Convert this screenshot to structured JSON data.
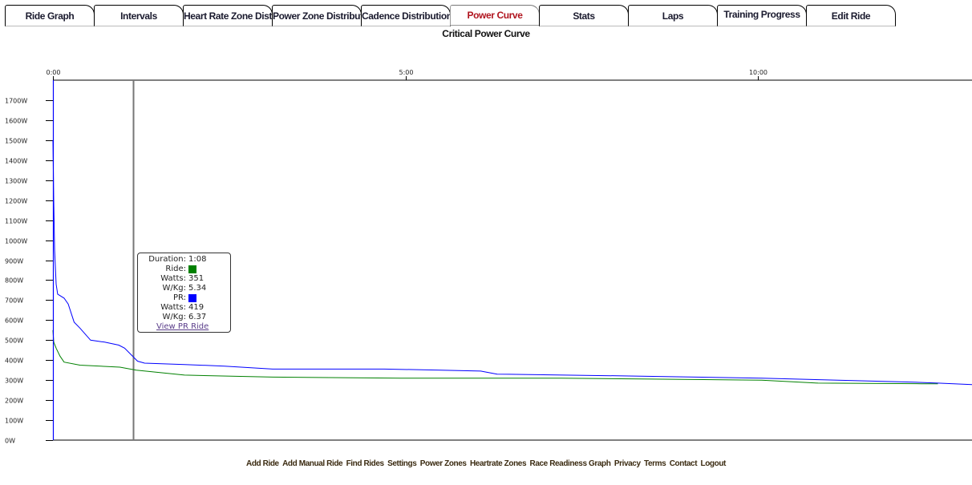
{
  "tabs": [
    {
      "label": "Ride Graph"
    },
    {
      "label": "Intervals"
    },
    {
      "label": "Heart Rate Zone Distribution"
    },
    {
      "label": "Power Zone Distribution"
    },
    {
      "label": "Cadence Distribution"
    },
    {
      "label": "Power Curve",
      "active": true
    },
    {
      "label": "Stats"
    },
    {
      "label": "Laps"
    },
    {
      "label": "Training Progress"
    },
    {
      "label": "Edit Ride"
    }
  ],
  "page_title": "Critical Power Curve",
  "colors": {
    "ride": "#008000",
    "pr": "#0000ff",
    "active_tab": "#b0141e",
    "cursor": "#777777"
  },
  "chart_data": {
    "type": "line",
    "title": "Critical Power Curve",
    "xlabel": "",
    "ylabel": "",
    "xlim_seconds": [
      0,
      782
    ],
    "ylim": [
      0,
      1800
    ],
    "x_ticks": [
      {
        "value": 0,
        "label": "0:00"
      },
      {
        "value": 300,
        "label": "5:00"
      },
      {
        "value": 600,
        "label": "10:00"
      }
    ],
    "y_ticks": [
      "0W",
      "100W",
      "200W",
      "300W",
      "400W",
      "500W",
      "600W",
      "700W",
      "800W",
      "900W",
      "1000W",
      "1100W",
      "1200W",
      "1300W",
      "1400W",
      "1500W",
      "1600W",
      "1700W"
    ],
    "cursor_seconds": 68,
    "series": [
      {
        "key": "pr",
        "color": "#0000ff",
        "points": [
          [
            0,
            1500
          ],
          [
            0.7,
            1200
          ],
          [
            1.4,
            950
          ],
          [
            2.7,
            780
          ],
          [
            4,
            730
          ],
          [
            9.5,
            710
          ],
          [
            13,
            680
          ],
          [
            18,
            590
          ],
          [
            23,
            560
          ],
          [
            32,
            500
          ],
          [
            44,
            490
          ],
          [
            56,
            475
          ],
          [
            61,
            460
          ],
          [
            72,
            395
          ],
          [
            78,
            385
          ],
          [
            112,
            378
          ],
          [
            146,
            370
          ],
          [
            187,
            355
          ],
          [
            282,
            355
          ],
          [
            330,
            350
          ],
          [
            364,
            345
          ],
          [
            378,
            330
          ],
          [
            500,
            320
          ],
          [
            603,
            310
          ],
          [
            733,
            290
          ],
          [
            753,
            285
          ],
          [
            782,
            278
          ]
        ]
      },
      {
        "key": "ride",
        "color": "#008000",
        "points": [
          [
            0,
            550
          ],
          [
            0.7,
            490
          ],
          [
            2.7,
            460
          ],
          [
            6,
            420
          ],
          [
            9.5,
            390
          ],
          [
            23,
            375
          ],
          [
            57,
            365
          ],
          [
            71,
            350
          ],
          [
            112,
            325
          ],
          [
            187,
            315
          ],
          [
            296,
            310
          ],
          [
            433,
            310
          ],
          [
            603,
            300
          ],
          [
            651,
            285
          ],
          [
            739,
            282
          ],
          [
            753,
            282
          ]
        ]
      }
    ]
  },
  "tooltip": {
    "duration_label": "Duration:",
    "duration": "1:08",
    "ride_label": "Ride:",
    "ride_watts_label": "Watts:",
    "ride_watts": "351",
    "ride_wkg_label": "W/Kg:",
    "ride_wkg": "5.34",
    "pr_label": "PR:",
    "pr_watts_label": "Watts:",
    "pr_watts": "419",
    "pr_wkg_label": "W/Kg:",
    "pr_wkg": "6.37",
    "link": "View PR Ride"
  },
  "footer": [
    "Add Ride",
    "Add Manual Ride",
    "Find Rides",
    "Settings",
    "Power Zones",
    "Heartrate Zones",
    "Race Readiness Graph",
    "Privacy",
    "Terms",
    "Contact",
    "Logout"
  ]
}
